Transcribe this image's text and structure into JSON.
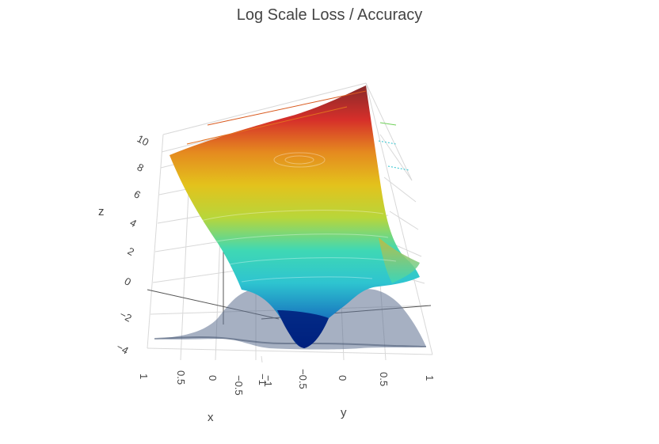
{
  "chart_data": {
    "type": "surface3d",
    "title": "Log Scale Loss / Accuracy",
    "xlabel": "x",
    "ylabel": "y",
    "zlabel": "z",
    "x_ticks": [
      "1",
      "0.5",
      "0",
      "−0.5",
      "−1"
    ],
    "y_ticks": [
      "−1",
      "−0.5",
      "0",
      "0.5",
      "1"
    ],
    "z_ticks": [
      "10",
      "8",
      "6",
      "4",
      "2",
      "0",
      "−2",
      "−4"
    ],
    "xlim": [
      -1,
      1
    ],
    "ylim": [
      -1,
      1
    ],
    "zlim": [
      -4,
      10
    ],
    "colorscale": [
      "#00207e",
      "#1a7cc0",
      "#2ec4d0",
      "#3fd8b4",
      "#b8d63a",
      "#e3c21c",
      "#e58a1f",
      "#d62f2a",
      "#8b2a2a"
    ],
    "series": [
      {
        "surface": "loss",
        "colorscale": "jet-like",
        "min_point": {
          "x": 0,
          "y": -0.5,
          "z": -3.6
        },
        "max_z": 10,
        "z_at_corners": {
          "x=1,y=-1": 8.8,
          "x=-1,y=1": 9.2,
          "x=-1,y=-1": 10,
          "x=1,y=1": -0.5
        }
      },
      {
        "surface": "accuracy",
        "color": "#5c708f",
        "opacity": 0.55,
        "z_range": [
          -3.8,
          0.3
        ]
      }
    ]
  }
}
